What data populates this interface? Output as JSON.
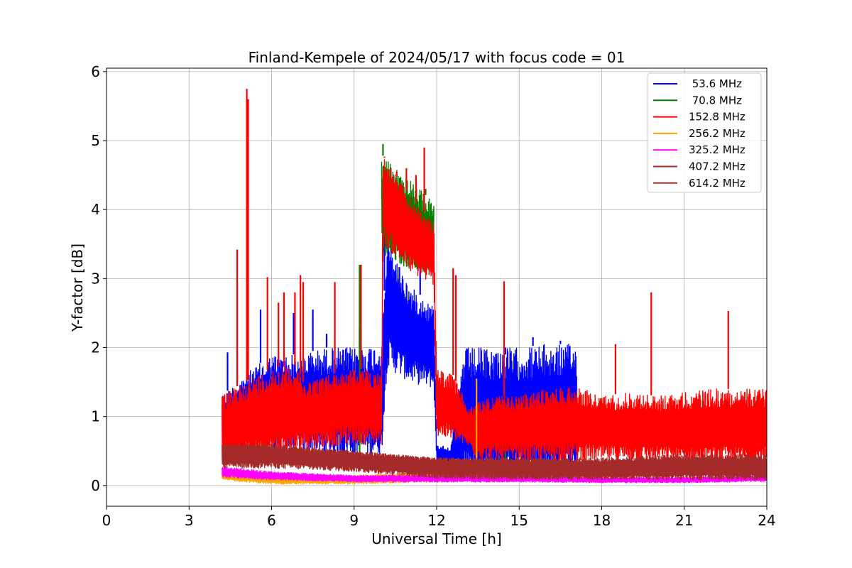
{
  "chart_data": {
    "type": "line",
    "title": "Finland-Kempele of 2024/05/17 with focus code = 01",
    "xlabel": "Universal Time [h]",
    "ylabel": "Y-factor [dB]",
    "xlim": [
      0,
      24
    ],
    "ylim": [
      -0.3,
      6.05
    ],
    "xticks": [
      0,
      3,
      6,
      9,
      12,
      15,
      18,
      21,
      24
    ],
    "yticks": [
      0,
      1,
      2,
      3,
      4,
      5,
      6
    ],
    "grid": true,
    "legend_position": "top-right",
    "series": [
      {
        "name": " 53.6 MHz",
        "color": "#0000ff",
        "envelope": [
          [
            4.2,
            0.55,
            1.3
          ],
          [
            5.0,
            0.55,
            1.6
          ],
          [
            6.0,
            0.45,
            1.9
          ],
          [
            7.0,
            0.45,
            1.9
          ],
          [
            8.0,
            0.4,
            2.0
          ],
          [
            9.0,
            0.4,
            2.0
          ],
          [
            10.0,
            0.45,
            2.05
          ],
          [
            10.2,
            1.7,
            3.6
          ],
          [
            11.0,
            1.5,
            2.9
          ],
          [
            11.9,
            1.4,
            2.6
          ],
          [
            12.0,
            0.3,
            0.6
          ],
          [
            12.5,
            0.3,
            0.55
          ],
          [
            13.0,
            0.05,
            2.0
          ],
          [
            14.0,
            0.05,
            2.0
          ],
          [
            15.0,
            0.05,
            2.0
          ],
          [
            16.0,
            0.05,
            2.05
          ],
          [
            17.1,
            0.05,
            2.05
          ]
        ],
        "peaks": [
          [
            4.4,
            1.93
          ],
          [
            4.75,
            2.95
          ],
          [
            5.6,
            2.55
          ],
          [
            6.8,
            2.5
          ],
          [
            7.5,
            2.55
          ],
          [
            8.0,
            2.2
          ],
          [
            9.2,
            2.3
          ],
          [
            10.1,
            3.7
          ],
          [
            11.4,
            3.3
          ],
          [
            14.5,
            1.9
          ],
          [
            15.5,
            2.15
          ],
          [
            16.5,
            2.1
          ]
        ]
      },
      {
        "name": " 70.8 MHz",
        "color": "#008000",
        "envelope": [
          [
            10.0,
            3.3,
            4.8
          ],
          [
            11.9,
            3.0,
            4.1
          ]
        ],
        "peaks": [
          [
            10.05,
            4.95
          ],
          [
            9.2,
            3.2
          ],
          [
            11.6,
            4.3
          ],
          [
            14.5,
            0.6
          ]
        ]
      },
      {
        "name": "152.8 MHz",
        "color": "#ff0000",
        "envelope": [
          [
            4.2,
            0.3,
            1.3
          ],
          [
            5.0,
            0.35,
            1.5
          ],
          [
            6.0,
            0.4,
            1.7
          ],
          [
            7.0,
            0.45,
            1.75
          ],
          [
            7.1,
            0.55,
            1.5
          ],
          [
            8.0,
            0.55,
            1.6
          ],
          [
            9.0,
            0.6,
            1.7
          ],
          [
            10.0,
            0.6,
            1.65
          ],
          [
            10.05,
            3.5,
            4.8
          ],
          [
            11.0,
            3.1,
            4.2
          ],
          [
            11.9,
            2.9,
            3.8
          ],
          [
            12.0,
            0.7,
            1.7
          ],
          [
            12.6,
            0.65,
            1.6
          ],
          [
            13.2,
            0.55,
            1.1
          ],
          [
            13.4,
            0.4,
            1.2
          ],
          [
            14.0,
            0.35,
            1.3
          ],
          [
            15.0,
            0.35,
            1.3
          ],
          [
            16.0,
            0.35,
            1.4
          ],
          [
            17.0,
            0.35,
            1.45
          ],
          [
            18.0,
            0.35,
            1.3
          ],
          [
            19.0,
            0.35,
            1.35
          ],
          [
            20.0,
            0.35,
            1.3
          ],
          [
            21.0,
            0.3,
            1.35
          ],
          [
            22.0,
            0.3,
            1.4
          ],
          [
            23.0,
            0.3,
            1.4
          ],
          [
            24.0,
            0.3,
            1.4
          ]
        ],
        "peaks": [
          [
            4.75,
            3.42
          ],
          [
            5.1,
            5.75
          ],
          [
            5.15,
            5.6
          ],
          [
            5.85,
            3.02
          ],
          [
            6.25,
            2.65
          ],
          [
            6.45,
            2.8
          ],
          [
            6.85,
            2.8
          ],
          [
            7.05,
            3.05
          ],
          [
            7.15,
            2.95
          ],
          [
            8.3,
            2.95
          ],
          [
            9.25,
            3.2
          ],
          [
            10.1,
            4.75
          ],
          [
            10.55,
            4.55
          ],
          [
            10.9,
            4.6
          ],
          [
            11.25,
            4.5
          ],
          [
            11.55,
            4.9
          ],
          [
            12.6,
            3.15
          ],
          [
            12.7,
            3.05
          ],
          [
            14.45,
            2.96
          ],
          [
            18.5,
            2.05
          ],
          [
            19.8,
            2.8
          ],
          [
            22.6,
            2.53
          ]
        ]
      },
      {
        "name": "256.2 MHz",
        "color": "#ffa500",
        "envelope": [
          [
            4.2,
            0.08,
            0.2
          ],
          [
            6.0,
            0.02,
            0.15
          ],
          [
            9.0,
            0.02,
            0.15
          ],
          [
            12.0,
            0.05,
            0.2
          ],
          [
            15.0,
            0.05,
            0.25
          ],
          [
            18.0,
            0.1,
            0.35
          ],
          [
            21.0,
            0.15,
            0.35
          ],
          [
            24.0,
            0.2,
            0.35
          ]
        ],
        "peaks": [
          [
            13.45,
            1.55
          ]
        ]
      },
      {
        "name": "325.2 MHz",
        "color": "#ff00ff",
        "envelope": [
          [
            4.2,
            0.12,
            0.28
          ],
          [
            6.0,
            0.08,
            0.2
          ],
          [
            9.0,
            0.05,
            0.15
          ],
          [
            12.0,
            0.05,
            0.15
          ],
          [
            15.0,
            0.05,
            0.15
          ],
          [
            18.0,
            0.04,
            0.12
          ],
          [
            21.0,
            0.04,
            0.12
          ],
          [
            24.0,
            0.06,
            0.15
          ]
        ],
        "peaks": []
      },
      {
        "name": "407.2 MHz",
        "color": "#a52a2a",
        "envelope": [
          [
            4.2,
            0.25,
            0.6
          ],
          [
            6.0,
            0.25,
            0.6
          ],
          [
            9.0,
            0.2,
            0.5
          ],
          [
            12.0,
            0.1,
            0.4
          ],
          [
            15.0,
            0.08,
            0.4
          ],
          [
            18.0,
            0.08,
            0.35
          ],
          [
            21.0,
            0.08,
            0.4
          ],
          [
            24.0,
            0.08,
            0.4
          ]
        ],
        "peaks": []
      },
      {
        "name": "614.2 MHz",
        "color": "#a52a2a",
        "envelope": [
          [
            4.2,
            0.3,
            0.6
          ],
          [
            6.0,
            0.3,
            0.6
          ],
          [
            9.0,
            0.25,
            0.5
          ],
          [
            12.0,
            0.15,
            0.4
          ],
          [
            15.0,
            0.15,
            0.4
          ],
          [
            18.0,
            0.15,
            0.4
          ],
          [
            21.0,
            0.15,
            0.45
          ],
          [
            24.0,
            0.15,
            0.45
          ]
        ],
        "peaks": []
      }
    ]
  }
}
